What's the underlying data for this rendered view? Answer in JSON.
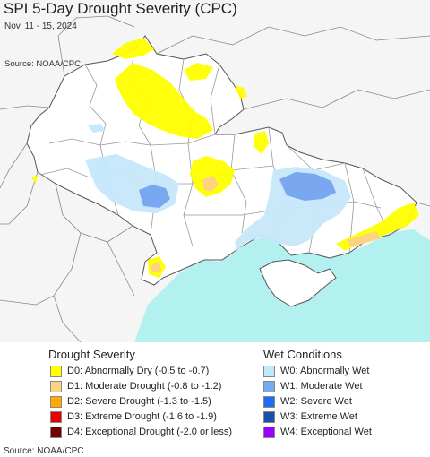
{
  "header": {
    "title": "SPI 5-Day Drought Severity (CPC)",
    "date_range": "Nov. 11 - 15, 2024",
    "source_top": "Source: NOAA/CPC"
  },
  "colors": {
    "land": "#f5f5f5",
    "focus_land": "#ffffff",
    "sea": "#b3f0f0",
    "border": "#888888",
    "D0": "#ffff00",
    "D1": "#fcd37f",
    "W0": "#c6e8fb",
    "W1": "#79a8f0"
  },
  "legend": {
    "drought": {
      "heading": "Drought Severity",
      "items": [
        {
          "label": "D0: Abnormally Dry (-0.5 to -0.7)",
          "color": "#ffff00"
        },
        {
          "label": "D1: Moderate Drought (-0.8 to -1.2)",
          "color": "#fcd37f"
        },
        {
          "label": "D2: Severe Drought (-1.3 to -1.5)",
          "color": "#ffaa00"
        },
        {
          "label": "D3: Extreme Drought (-1.6 to -1.9)",
          "color": "#e60000"
        },
        {
          "label": "D4: Exceptional Drought (-2.0 or less)",
          "color": "#730000"
        }
      ]
    },
    "wet": {
      "heading": "Wet Conditions",
      "items": [
        {
          "label": "W0: Abnormally Wet",
          "color": "#bfe8fa"
        },
        {
          "label": "W1: Moderate Wet",
          "color": "#78aaf0"
        },
        {
          "label": "W2: Severe Wet",
          "color": "#1f6cf2"
        },
        {
          "label": "W3: Extreme Wet",
          "color": "#1b4fa8"
        },
        {
          "label": "W4: Exceptional Wet",
          "color": "#9b00ff"
        }
      ]
    }
  },
  "footer": {
    "source": "Source: NOAA/CPC"
  }
}
